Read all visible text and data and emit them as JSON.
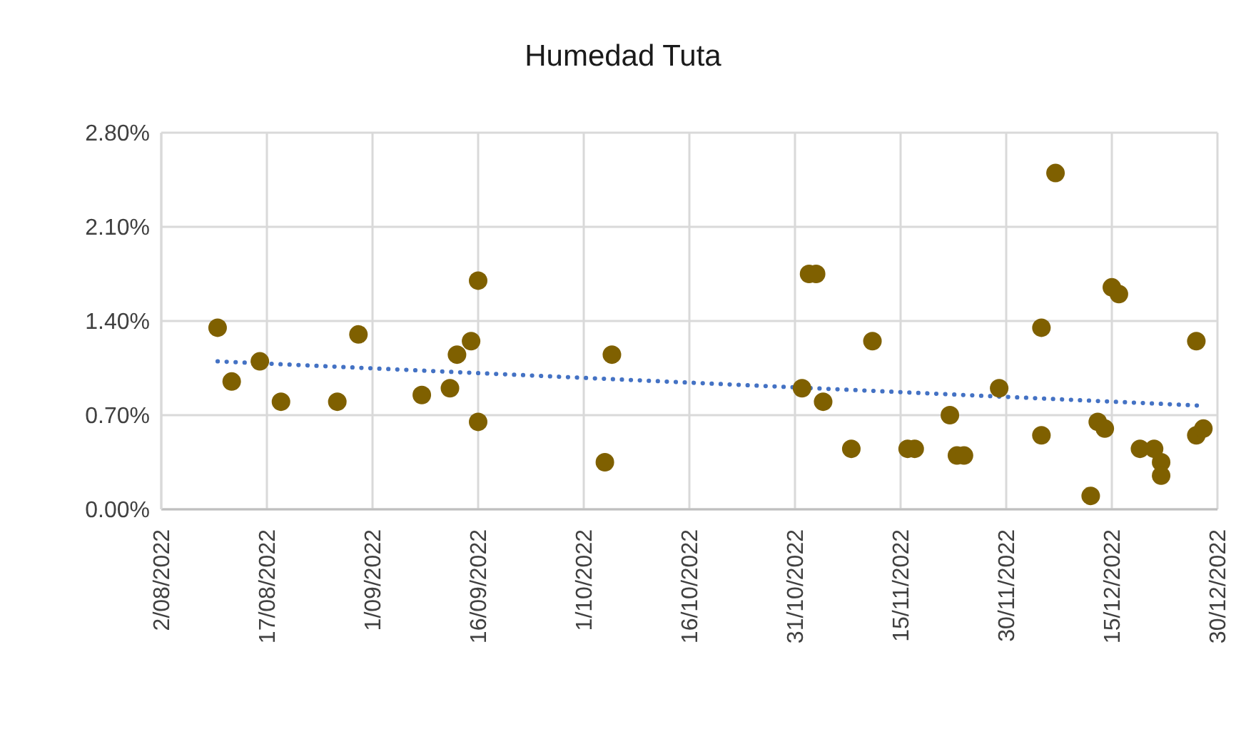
{
  "chart_data": {
    "type": "scatter",
    "title": "Humedad Tuta",
    "xlim": [
      "2022-08-02",
      "2022-12-30"
    ],
    "xticks": [
      {
        "value": "2022-08-02",
        "label": "2/08/2022"
      },
      {
        "value": "2022-08-17",
        "label": "17/08/2022"
      },
      {
        "value": "2022-09-01",
        "label": "1/09/2022"
      },
      {
        "value": "2022-09-16",
        "label": "16/09/2022"
      },
      {
        "value": "2022-10-01",
        "label": "1/10/2022"
      },
      {
        "value": "2022-10-16",
        "label": "16/10/2022"
      },
      {
        "value": "2022-10-31",
        "label": "31/10/2022"
      },
      {
        "value": "2022-11-15",
        "label": "15/11/2022"
      },
      {
        "value": "2022-11-30",
        "label": "30/11/2022"
      },
      {
        "value": "2022-12-15",
        "label": "15/12/2022"
      },
      {
        "value": "2022-12-30",
        "label": "30/12/2022"
      }
    ],
    "ylim": [
      0,
      2.8
    ],
    "yticks": [
      {
        "value": 0,
        "label": "0.00%"
      },
      {
        "value": 0.7,
        "label": "0.70%"
      },
      {
        "value": 1.4,
        "label": "1.40%"
      },
      {
        "value": 2.1,
        "label": "2.10%"
      },
      {
        "value": 2.8,
        "label": "2.80%"
      }
    ],
    "grid": true,
    "marker": "circle",
    "series": [
      {
        "type": "scatter",
        "color": "#7f6000",
        "x": [
          "2022-08-10",
          "2022-08-12",
          "2022-08-16",
          "2022-08-19",
          "2022-08-27",
          "2022-08-30",
          "2022-09-08",
          "2022-09-12",
          "2022-09-13",
          "2022-09-15",
          "2022-09-16",
          "2022-09-16",
          "2022-10-04",
          "2022-10-05",
          "2022-11-01",
          "2022-11-02",
          "2022-11-03",
          "2022-11-04",
          "2022-11-08",
          "2022-11-11",
          "2022-11-16",
          "2022-11-17",
          "2022-11-22",
          "2022-11-23",
          "2022-11-24",
          "2022-11-29",
          "2022-12-05",
          "2022-12-05",
          "2022-12-07",
          "2022-12-12",
          "2022-12-13",
          "2022-12-14",
          "2022-12-15",
          "2022-12-16",
          "2022-12-19",
          "2022-12-21",
          "2022-12-22",
          "2022-12-22",
          "2022-12-27",
          "2022-12-27",
          "2022-12-28"
        ],
        "values": [
          1.35,
          0.95,
          1.1,
          0.8,
          0.8,
          1.3,
          0.85,
          0.9,
          1.15,
          1.25,
          1.7,
          0.65,
          0.35,
          1.15,
          0.9,
          1.75,
          1.75,
          0.8,
          0.45,
          1.25,
          0.45,
          0.45,
          0.7,
          0.4,
          0.4,
          0.9,
          1.35,
          0.55,
          2.5,
          0.1,
          0.65,
          0.6,
          1.65,
          1.6,
          0.45,
          0.45,
          0.35,
          0.25,
          1.25,
          0.55,
          0.6
        ]
      },
      {
        "type": "line",
        "color": "#4472c4",
        "line_style": "dotted",
        "marker": "none",
        "x": [
          "2022-08-10",
          "2022-12-28"
        ],
        "values": [
          1.1,
          0.77
        ]
      }
    ]
  }
}
